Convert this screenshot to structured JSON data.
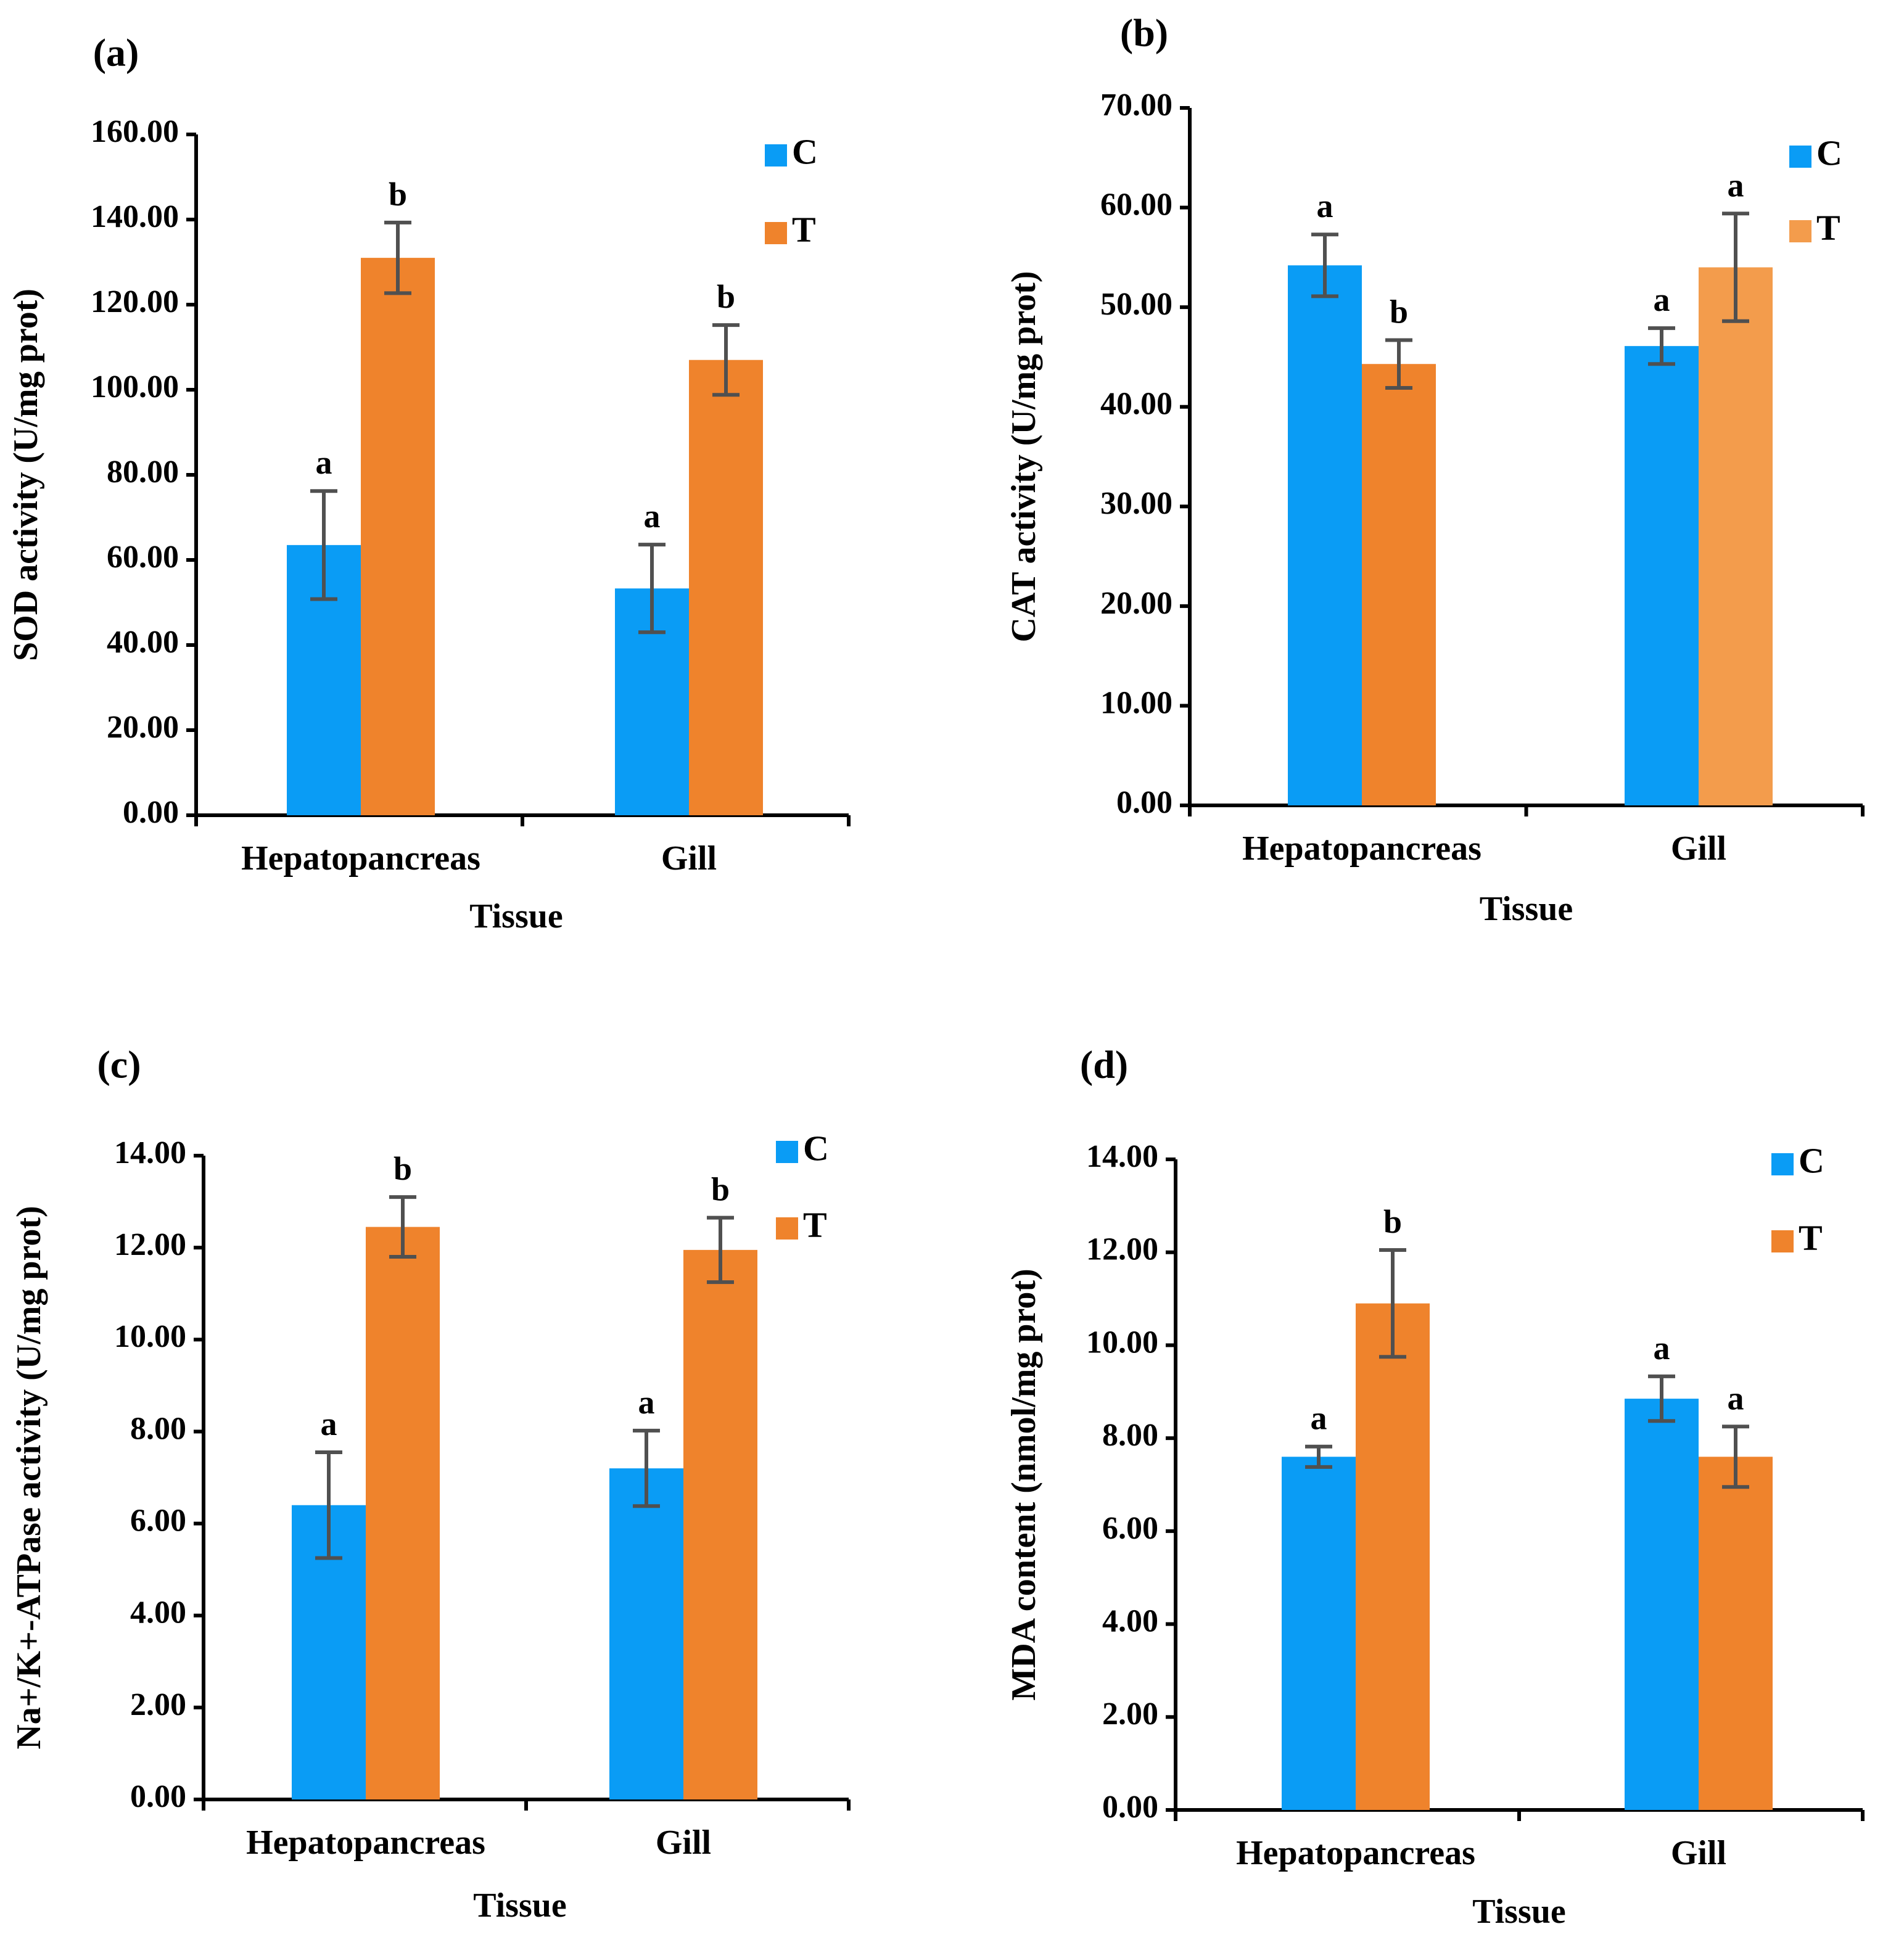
{
  "colors": {
    "C": "#0a9cf5",
    "T": "#ef832c",
    "T_alt": "#f39c4c",
    "error_bar": "#505050",
    "axis": "#000000"
  },
  "chart_data": [
    {
      "type": "bar",
      "panel_label": "(a)",
      "xlabel": "Tissue",
      "ylabel": "SOD activity (U/mg prot)",
      "ylim": [
        0,
        160
      ],
      "yticks": [
        "0.00",
        "20.00",
        "40.00",
        "60.00",
        "80.00",
        "100.00",
        "120.00",
        "140.00",
        "160.00"
      ],
      "categories": [
        "Hepatopancreas",
        "Gill"
      ],
      "legend": [
        "C",
        "T"
      ],
      "legend_position": "top-right",
      "series": [
        {
          "name": "C",
          "values": [
            63.5,
            53.3
          ],
          "errors": [
            12.7,
            10.3
          ],
          "letters": [
            "a",
            "a"
          ]
        },
        {
          "name": "T",
          "values": [
            131.0,
            107.0
          ],
          "errors": [
            8.3,
            8.2
          ],
          "letters": [
            "b",
            "b"
          ]
        }
      ]
    },
    {
      "type": "bar",
      "panel_label": "(b)",
      "xlabel": "Tissue",
      "ylabel": "CAT activity (U/mg prot)",
      "ylim": [
        0,
        70
      ],
      "yticks": [
        "0.00",
        "10.00",
        "20.00",
        "30.00",
        "40.00",
        "50.00",
        "60.00",
        "70.00"
      ],
      "categories": [
        "Hepatopancreas",
        "Gill"
      ],
      "legend": [
        "C",
        "T"
      ],
      "legend_position": "top-right",
      "series": [
        {
          "name": "C",
          "values": [
            54.2,
            46.1
          ],
          "errors": [
            3.1,
            1.8
          ],
          "letters": [
            "a",
            "a"
          ]
        },
        {
          "name": "T",
          "values": [
            44.3,
            54.0
          ],
          "errors": [
            2.4,
            5.4
          ],
          "letters": [
            "b",
            "a"
          ]
        }
      ]
    },
    {
      "type": "bar",
      "panel_label": "(c)",
      "xlabel": "Tissue",
      "ylabel": "Na+/K+-ATPase activity (U/mg prot)",
      "ylim": [
        0,
        14
      ],
      "yticks": [
        "0.00",
        "2.00",
        "4.00",
        "6.00",
        "8.00",
        "10.00",
        "12.00",
        "14.00"
      ],
      "categories": [
        "Hepatopancreas",
        "Gill"
      ],
      "legend": [
        "C",
        "T"
      ],
      "legend_position": "top-right",
      "series": [
        {
          "name": "C",
          "values": [
            6.4,
            7.2
          ],
          "errors": [
            1.15,
            0.82
          ],
          "letters": [
            "a",
            "a"
          ]
        },
        {
          "name": "T",
          "values": [
            12.45,
            11.95
          ],
          "errors": [
            0.65,
            0.7
          ],
          "letters": [
            "b",
            "b"
          ]
        }
      ]
    },
    {
      "type": "bar",
      "panel_label": "(d)",
      "xlabel": "Tissue",
      "ylabel": "MDA content (nmol/mg prot)",
      "ylim": [
        0,
        14
      ],
      "yticks": [
        "0.00",
        "2.00",
        "4.00",
        "6.00",
        "8.00",
        "10.00",
        "12.00",
        "14.00"
      ],
      "categories": [
        "Hepatopancreas",
        "Gill"
      ],
      "legend": [
        "C",
        "T"
      ],
      "legend_position": "top-right",
      "series": [
        {
          "name": "C",
          "values": [
            7.6,
            8.85
          ],
          "errors": [
            0.22,
            0.48
          ],
          "letters": [
            "a",
            "a"
          ]
        },
        {
          "name": "T",
          "values": [
            10.9,
            7.6
          ],
          "errors": [
            1.15,
            0.65
          ],
          "letters": [
            "b",
            "a"
          ]
        }
      ]
    }
  ]
}
